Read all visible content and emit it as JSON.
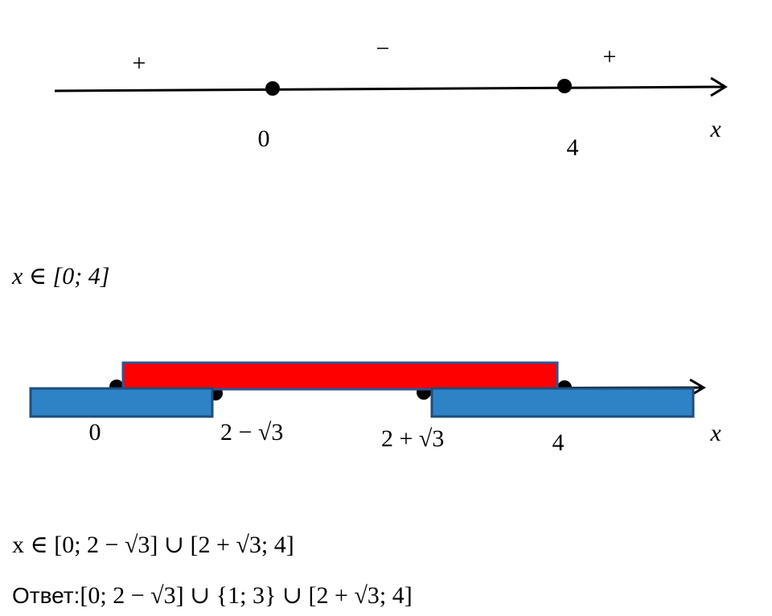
{
  "top_axis": {
    "signs": [
      "+",
      "−",
      "+"
    ],
    "labels": [
      "0",
      "4"
    ],
    "variable": "x"
  },
  "result_1": "x ∈ [0; 4]",
  "bottom_axis": {
    "labels": [
      "0",
      "2 − √3",
      "2 + √3",
      "4"
    ],
    "variable": "x"
  },
  "result_2": "x ∈ [0; 2 − √3] ∪ [2 + √3; 4]",
  "answer": {
    "label": "Ответ:",
    "value": "[0; 2 − √3] ∪  {1; 3} ∪ [2 + √3; 4]"
  }
}
